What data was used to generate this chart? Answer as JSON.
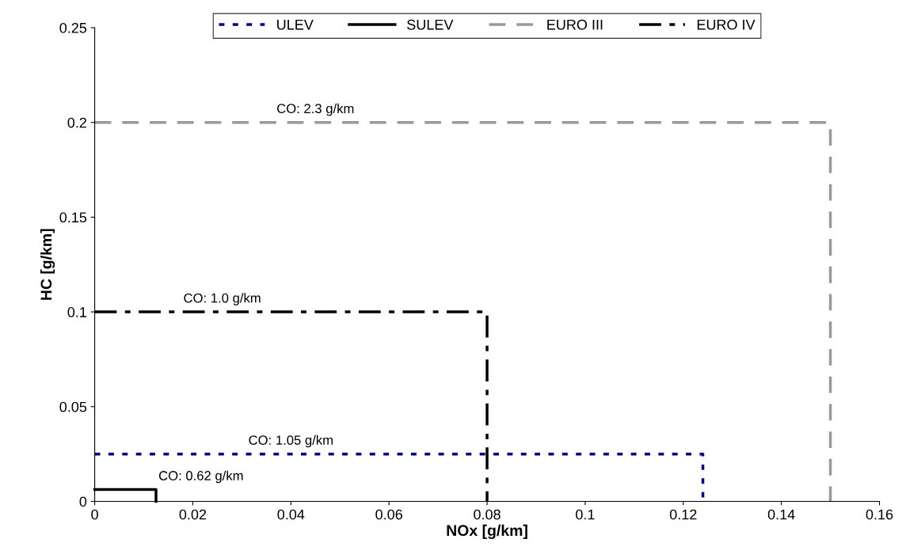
{
  "chart_data": {
    "type": "line",
    "xlabel": "NOx [g/km]",
    "ylabel": "HC [g/km]",
    "xlim": [
      0,
      0.16
    ],
    "xticks": [
      0,
      0.02,
      0.04,
      0.06,
      0.08,
      0.1,
      0.12,
      0.14,
      0.16
    ],
    "ylim": [
      0,
      0.25
    ],
    "yticks": [
      0,
      0.05,
      0.1,
      0.15,
      0.2,
      0.25
    ],
    "grid": false,
    "legend": "top",
    "marker": "none",
    "series": [
      {
        "name": "ULEV",
        "color": "#000080",
        "line_style": "dotted",
        "x": [
          0,
          0.124,
          0.124
        ],
        "values": [
          0.025,
          0.025,
          0
        ]
      },
      {
        "name": "SULEV",
        "color": "#000000",
        "line_style": "solid",
        "x": [
          0,
          0.0125,
          0.0125
        ],
        "values": [
          0.00625,
          0.00625,
          0
        ]
      },
      {
        "name": "EURO III",
        "color": "#999999",
        "line_style": "dashed",
        "x": [
          0,
          0.15,
          0.15
        ],
        "values": [
          0.2,
          0.2,
          0
        ]
      },
      {
        "name": "EURO IV",
        "color": "#000000",
        "line_style": "dashdot",
        "x": [
          0,
          0.08,
          0.08
        ],
        "values": [
          0.1,
          0.1,
          0
        ]
      }
    ],
    "annotations": [
      {
        "text": "CO: 2.3 g/km",
        "x": 0.045,
        "y": 0.2
      },
      {
        "text": "CO: 1.0 g/km",
        "x": 0.026,
        "y": 0.1
      },
      {
        "text": "CO: 1.05 g/km",
        "x": 0.04,
        "y": 0.025
      },
      {
        "text": "CO: 0.62 g/km",
        "x": 0.013,
        "y": 0.00625
      }
    ]
  }
}
